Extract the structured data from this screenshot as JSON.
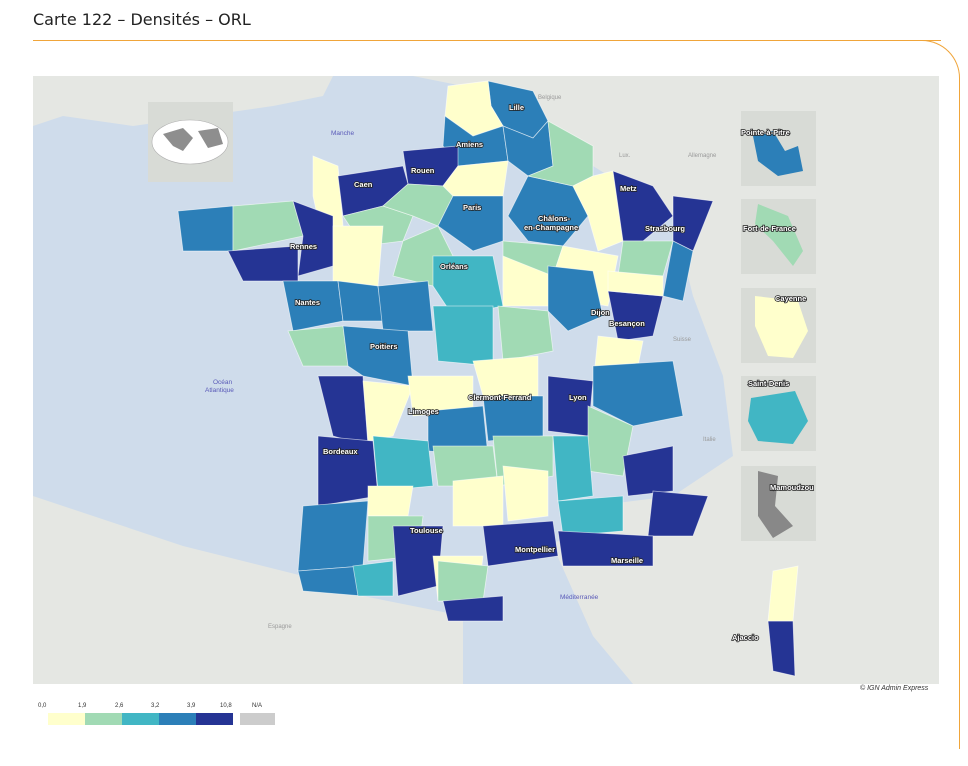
{
  "page": {
    "title": "Carte 122 – Densités – ORL"
  },
  "credit": "© IGN Admin Express",
  "legend": {
    "ticks": [
      "0,0",
      "1,9",
      "2,6",
      "3,2",
      "3,9",
      "10,8"
    ],
    "na_label": "N/A",
    "colors": [
      "#ffffcc",
      "#a1dab4",
      "#41b6c4",
      "#2c7fb8",
      "#253494"
    ],
    "na_color": "#cccccc"
  },
  "seas": {
    "manche": "Manche",
    "ocean_1": "Océan",
    "ocean_2": "Atlantique",
    "med": "Méditerranée"
  },
  "countries": {
    "belgique": "Belgique",
    "lux": "Lux.",
    "allemagne": "Allemagne",
    "suisse": "Suisse",
    "italie": "Italie",
    "espagne": "Espagne"
  },
  "cities": {
    "lille": "Lille",
    "amiens": "Amiens",
    "rouen": "Rouen",
    "caen": "Caen",
    "paris": "Paris",
    "metz": "Metz",
    "strasbourg": "Strasbourg",
    "chalons_1": "Châlons-",
    "chalons_2": "en-Champagne",
    "rennes": "Rennes",
    "orleans": "Orléans",
    "nantes": "Nantes",
    "dijon": "Dijon",
    "besancon": "Besançon",
    "poitiers": "Poitiers",
    "limoges": "Limoges",
    "clermont": "Clermont-Ferrand",
    "lyon": "Lyon",
    "bordeaux": "Bordeaux",
    "toulouse": "Toulouse",
    "montpellier": "Montpellier",
    "marseille": "Marseille",
    "ajaccio": "Ajaccio"
  },
  "insets": {
    "guadeloupe": "Pointe-à-Pitre",
    "martinique": "Fort-de-France",
    "guyane": "Cayenne",
    "reunion": "Saint-Denis",
    "mayotte": "Mamoudzou"
  }
}
